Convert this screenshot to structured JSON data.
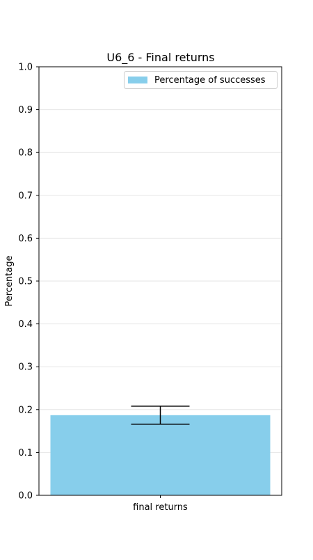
{
  "chart_data": {
    "type": "bar",
    "title": "U6_6 - Final returns",
    "xlabel": "",
    "ylabel": "Percentage",
    "categories": [
      "final returns"
    ],
    "series": [
      {
        "name": "Percentage of successes",
        "values": [
          0.187
        ],
        "error": [
          0.021
        ],
        "color": "#87ceeb"
      }
    ],
    "ylim": [
      0,
      1.0
    ],
    "yticks": [
      "0.0",
      "0.1",
      "0.2",
      "0.3",
      "0.4",
      "0.5",
      "0.6",
      "0.7",
      "0.8",
      "0.9",
      "1.0"
    ],
    "grid": "horizontal",
    "legend_position": "top-right"
  }
}
